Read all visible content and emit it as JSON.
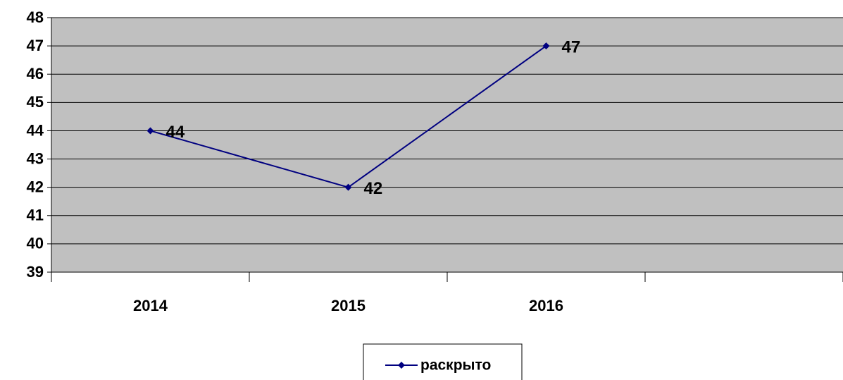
{
  "chart_data": {
    "type": "line",
    "categories": [
      "2014",
      "2015",
      "2016",
      null
    ],
    "series": [
      {
        "name": "раскрыто",
        "color": "#000080",
        "values": [
          44,
          42,
          47,
          null
        ]
      }
    ],
    "ylim": [
      39,
      48
    ],
    "yticks": [
      39,
      40,
      41,
      42,
      43,
      44,
      45,
      46,
      47,
      48
    ],
    "grid": true,
    "legend": "bottom"
  }
}
